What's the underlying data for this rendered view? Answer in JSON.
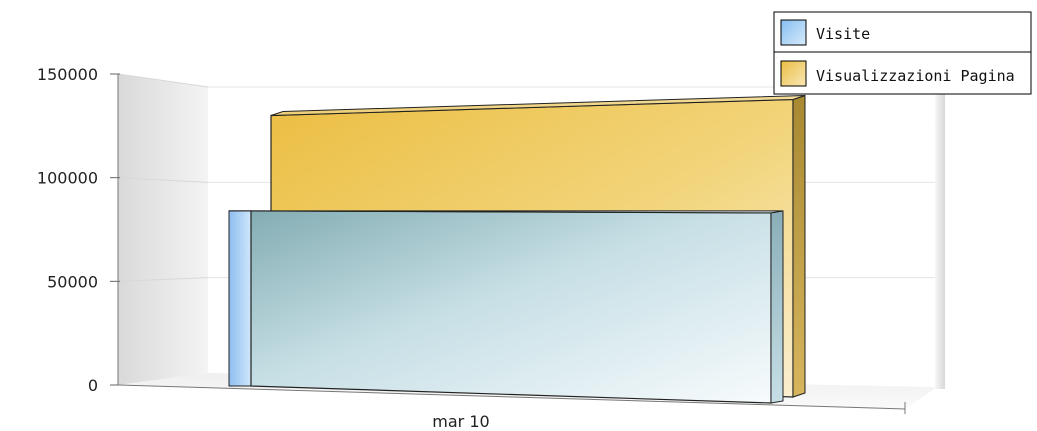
{
  "chart_data": {
    "type": "bar",
    "title": "",
    "xlabel": "",
    "ylabel": "",
    "categories": [
      "mar 10"
    ],
    "ylim": [
      0,
      150000
    ],
    "yticks": [
      0,
      50000,
      100000,
      150000
    ],
    "grid": true,
    "legend_position": "top-right",
    "style": "3d",
    "series": [
      {
        "name": "Visite",
        "values": [
          83000
        ],
        "color": "#a9d2f4"
      },
      {
        "name": "Visualizzazioni Pagina",
        "values": [
          130000
        ],
        "color": "#efc143"
      }
    ]
  }
}
